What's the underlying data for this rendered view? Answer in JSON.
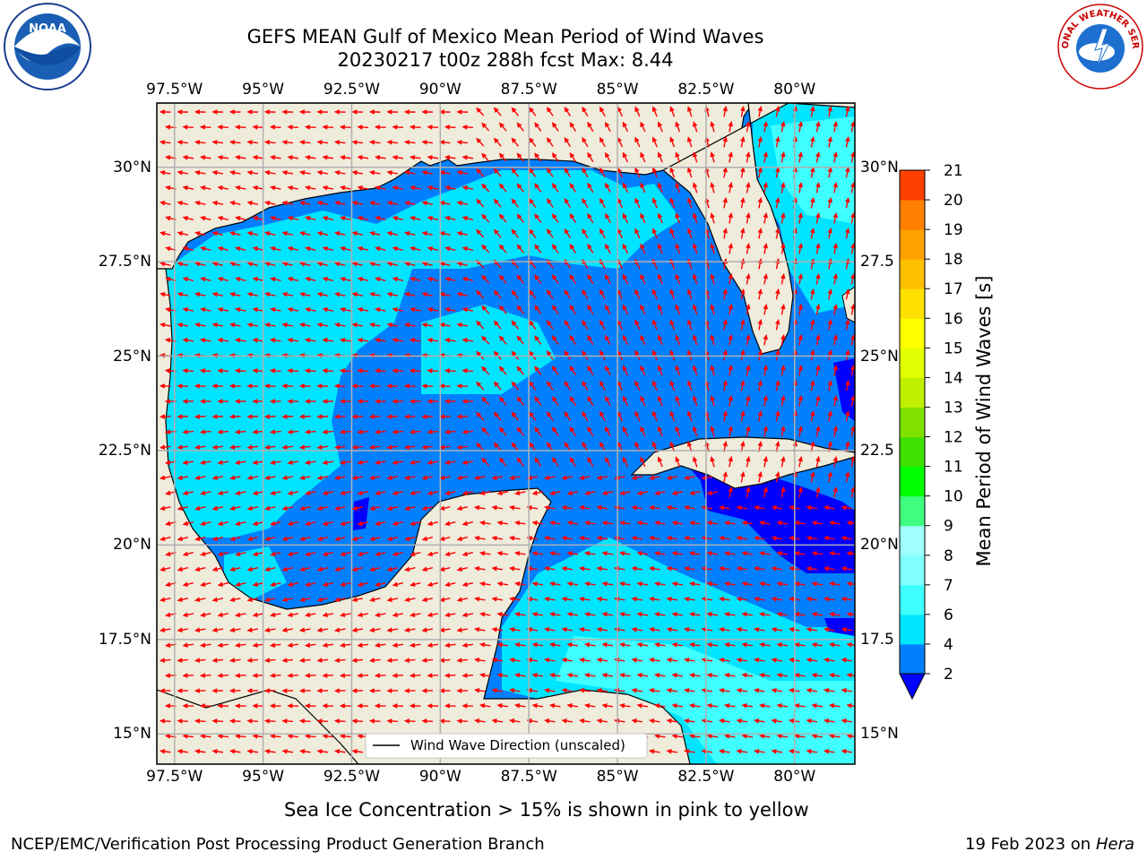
{
  "title": {
    "line1": "GEFS MEAN Gulf of Mexico Mean Period of Wind Waves",
    "line2": "20230217 t00z 288h fcst   Max: 8.44"
  },
  "logos": {
    "left_org": "NOAA",
    "right_org": "NATIONAL WEATHER SERVICE"
  },
  "map": {
    "lon_ticks": [
      "97.5°W",
      "95°W",
      "92.5°W",
      "90°W",
      "87.5°W",
      "85°W",
      "82.5°W",
      "80°W"
    ],
    "lat_ticks_left": [
      "30°N",
      "27.5°N",
      "25°N",
      "22.5°N",
      "20°N",
      "17.5°N",
      "15°N"
    ],
    "lat_ticks_right": [
      "30°N",
      "27.5",
      "25°N",
      "22.5",
      "20°N",
      "17.5",
      "15°N"
    ],
    "lon_range": [
      -98,
      -78.3
    ],
    "lat_range": [
      14.2,
      31.7
    ],
    "land_color": "#efecdc",
    "ocean_color": "#0080ff",
    "arrow_color": "#ff0000",
    "legend_label": "Wind Wave Direction (unscaled)"
  },
  "colorbar": {
    "label": "Mean Period of Wind Waves [s]",
    "levels": [
      "2",
      "4",
      "6",
      "7",
      "8",
      "9",
      "10",
      "11",
      "12",
      "13",
      "14",
      "15",
      "16",
      "17",
      "18",
      "19",
      "20",
      "21"
    ],
    "colors": [
      "#0080ff",
      "#00e5ff",
      "#40ffff",
      "#80ffff",
      "#a0ffff",
      "#40ff80",
      "#00ff00",
      "#40e000",
      "#80e000",
      "#c0f000",
      "#e0ff00",
      "#ffff00",
      "#ffe000",
      "#ffc000",
      "#ffa000",
      "#ff8000",
      "#ff4000",
      "#ff0000"
    ],
    "under_color": "#0000ff"
  },
  "sea_ice_note": "Sea Ice Concentration > 15% is shown in pink to yellow",
  "footer": {
    "left": "NCEP/EMC/Verification Post Processing Product Generation Branch",
    "right_date": "19 Feb 2023 on",
    "right_host": "Hera"
  }
}
